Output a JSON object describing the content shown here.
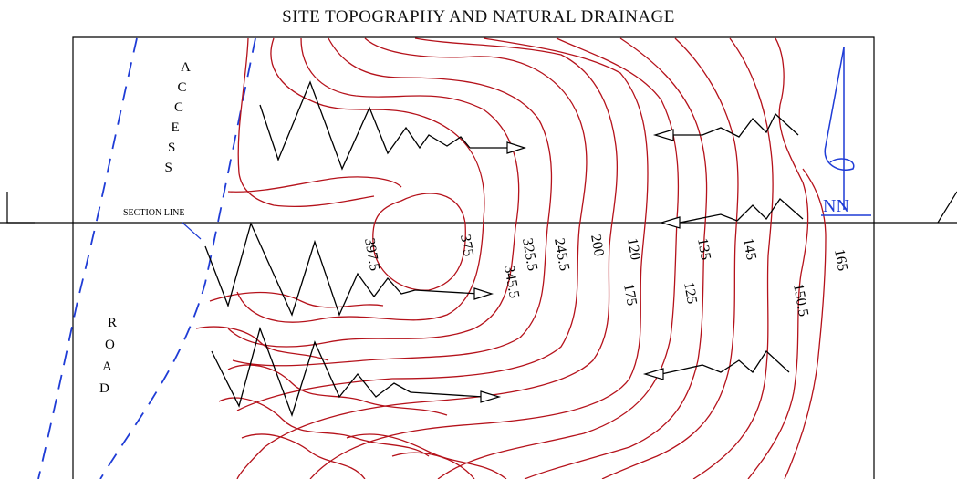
{
  "title": "SITE TOPOGRAPHY AND NATURAL DRAINAGE",
  "road_label_top": "ACCESS",
  "road_label_bottom": "ROAD",
  "section_line_label": "SECTION LINE",
  "north_label": "NN",
  "contour_labels": [
    "397.5",
    "375",
    "345.5",
    "325.5",
    "245.5",
    "200",
    "175",
    "120",
    "125",
    "135",
    "145",
    "150.5",
    "165"
  ],
  "colors": {
    "contour": "#b5121b",
    "road": "#1f3cd6",
    "line": "#000000"
  }
}
